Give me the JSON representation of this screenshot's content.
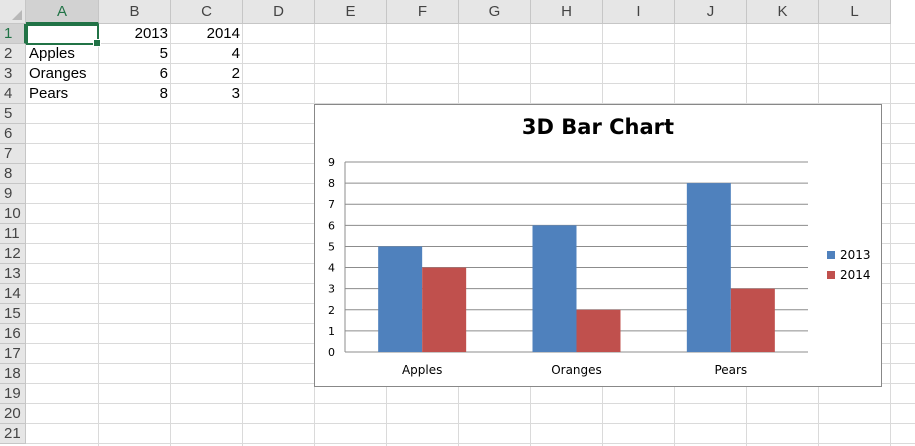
{
  "columns": [
    "A",
    "B",
    "C",
    "D",
    "E",
    "F",
    "G",
    "H",
    "I",
    "J",
    "K",
    "L"
  ],
  "rows": [
    "1",
    "2",
    "3",
    "4",
    "5",
    "6",
    "7",
    "8",
    "9",
    "10",
    "11",
    "12",
    "13",
    "14",
    "15",
    "16",
    "17",
    "18",
    "19",
    "20",
    "21"
  ],
  "cells": {
    "B1": "2013",
    "C1": "2014",
    "A2": "Apples",
    "B2": "5",
    "C2": "4",
    "A3": "Oranges",
    "B3": "6",
    "C3": "2",
    "A4": "Pears",
    "B4": "8",
    "C4": "3"
  },
  "colors": {
    "series_2013": "#4f81bd",
    "series_2014": "#c0504d",
    "selection": "#217346"
  },
  "chart_data": {
    "type": "bar",
    "title": "3D Bar Chart",
    "categories": [
      "Apples",
      "Oranges",
      "Pears"
    ],
    "series": [
      {
        "name": "2013",
        "values": [
          5,
          6,
          8
        ],
        "color": "#4f81bd"
      },
      {
        "name": "2014",
        "values": [
          4,
          2,
          3
        ],
        "color": "#c0504d"
      }
    ],
    "ylim": [
      0,
      9
    ],
    "yticks": [
      "0",
      "1",
      "2",
      "3",
      "4",
      "5",
      "6",
      "7",
      "8",
      "9"
    ],
    "grid": true,
    "legend": "right"
  }
}
